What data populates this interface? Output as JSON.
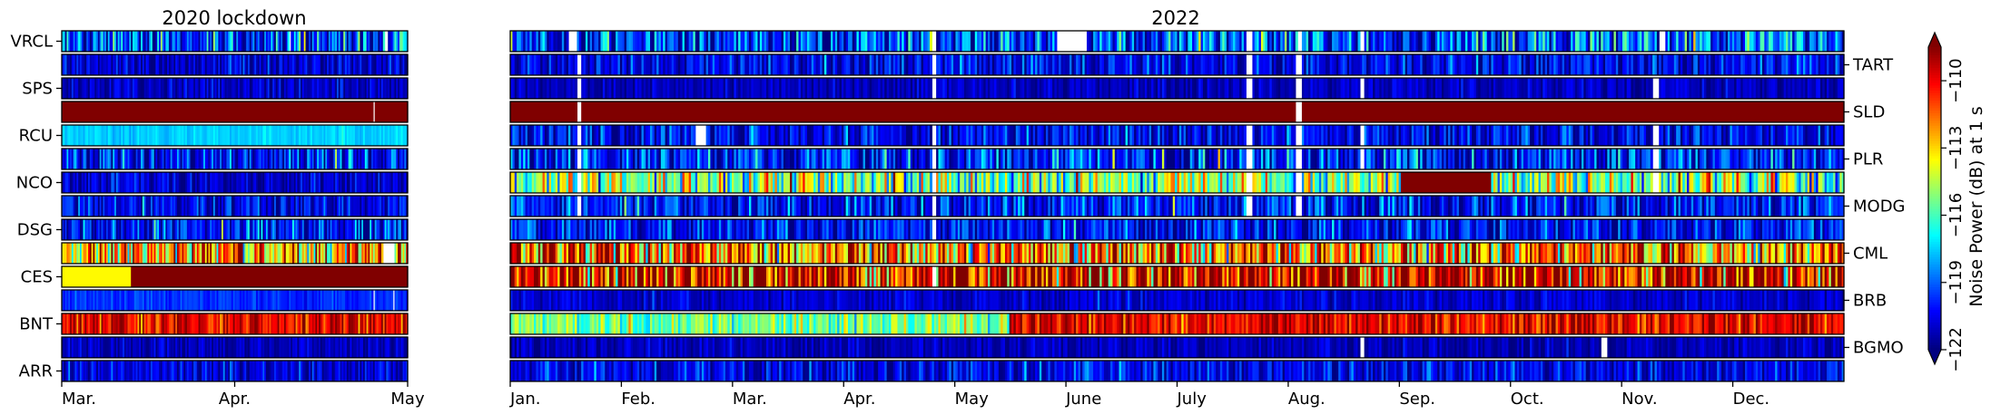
{
  "colorbar": {
    "label": "Noise Power (dB) at 1 s",
    "min": -122,
    "max": -108.5,
    "ticks": [
      -122,
      -119,
      -116,
      -113,
      -110
    ],
    "tick_labels": [
      "−122",
      "−119",
      "−116",
      "−113",
      "−110"
    ],
    "colormap": "jet",
    "extend": "both"
  },
  "chart_data": [
    {
      "type": "heatmap",
      "title": "2020 lockdown",
      "x_start": "2020-03-01",
      "x_end": "2020-05-01",
      "x_ticks": [
        "Mar.",
        "Apr.",
        "May"
      ],
      "y_labels_left": [
        "VRCL",
        "SPS",
        "RCU",
        "NCO",
        "DSG",
        "CES",
        "BNT",
        "ARR"
      ],
      "y_labels_right": [],
      "rows": [
        {
          "station": "VRCL",
          "median": -119.5,
          "variability": 3.0,
          "gaps": [
            [
              0.655,
              0.66
            ],
            [
              0.935,
              0.945
            ]
          ]
        },
        {
          "station": "TART",
          "median": -121.0,
          "variability": 1.4,
          "gaps": []
        },
        {
          "station": "SPS",
          "median": -121.2,
          "variability": 1.0,
          "gaps": []
        },
        {
          "station": "SLD",
          "median": -108.5,
          "variability": 0.0,
          "gaps": [
            [
              0.9,
              0.905
            ]
          ]
        },
        {
          "station": "RCU",
          "median": -117.6,
          "variability": 0.4,
          "gaps": []
        },
        {
          "station": "PLR",
          "median": -120.3,
          "variability": 2.2,
          "gaps": []
        },
        {
          "station": "NCO",
          "median": -121.0,
          "variability": 1.2,
          "gaps": []
        },
        {
          "station": "MODG",
          "median": -120.5,
          "variability": 1.6,
          "gaps": []
        },
        {
          "station": "DSG",
          "median": -120.2,
          "variability": 2.4,
          "gaps": []
        },
        {
          "station": "CML",
          "median": -112.5,
          "variability": 4.2,
          "gaps": [
            [
              0.93,
              0.96
            ]
          ]
        },
        {
          "station": "CES",
          "median": -108.5,
          "variability": 0.0,
          "lead_median": -113.5,
          "lead_fraction": 0.2,
          "gaps": []
        },
        {
          "station": "BRB",
          "median": -119.8,
          "variability": 0.6,
          "gaps": [
            [
              0.9,
              0.906
            ],
            [
              0.955,
              0.96
            ]
          ]
        },
        {
          "station": "BNT",
          "median": -110.0,
          "variability": 1.8,
          "gaps": []
        },
        {
          "station": "BGMO",
          "median": -121.3,
          "variability": 0.8,
          "gaps": []
        },
        {
          "station": "ARR",
          "median": -120.8,
          "variability": 1.2,
          "gaps": []
        }
      ]
    },
    {
      "type": "heatmap",
      "title": "2022",
      "x_start": "2022-01-01",
      "x_end": "2022-12-31",
      "x_ticks": [
        "Jan.",
        "Feb.",
        "Mar.",
        "Apr.",
        "May",
        "June",
        "July",
        "Aug.",
        "Sep.",
        "Oct.",
        "Nov.",
        "Dec."
      ],
      "y_labels_left": [],
      "y_labels_right": [
        "TART",
        "SLD",
        "PLR",
        "MODG",
        "CML",
        "BRB",
        "BGMO"
      ],
      "rows": [
        {
          "station": "VRCL",
          "median": -119.5,
          "variability": 3.0,
          "gaps": [
            [
              0.044,
              0.05
            ],
            [
              0.316,
              0.32
            ],
            [
              0.41,
              0.432
            ],
            [
              0.552,
              0.556
            ],
            [
              0.59,
              0.594
            ],
            [
              0.637,
              0.64
            ],
            [
              0.862,
              0.866
            ]
          ]
        },
        {
          "station": "TART",
          "median": -120.5,
          "variability": 1.6,
          "gaps": [
            [
              0.05,
              0.054
            ],
            [
              0.316,
              0.32
            ],
            [
              0.552,
              0.556
            ],
            [
              0.589,
              0.593
            ]
          ]
        },
        {
          "station": "SPS",
          "median": -121.2,
          "variability": 0.8,
          "gaps": [
            [
              0.05,
              0.054
            ],
            [
              0.316,
              0.32
            ],
            [
              0.552,
              0.556
            ],
            [
              0.589,
              0.593
            ],
            [
              0.637,
              0.64
            ],
            [
              0.857,
              0.861
            ]
          ]
        },
        {
          "station": "SLD",
          "median": -108.5,
          "variability": 0.0,
          "gaps": [
            [
              0.05,
              0.054
            ],
            [
              0.589,
              0.593
            ]
          ]
        },
        {
          "station": "RCU",
          "median": -120.6,
          "variability": 1.6,
          "gaps": [
            [
              0.05,
              0.054
            ],
            [
              0.138,
              0.146
            ],
            [
              0.316,
              0.32
            ],
            [
              0.552,
              0.556
            ],
            [
              0.589,
              0.593
            ],
            [
              0.637,
              0.64
            ],
            [
              0.857,
              0.861
            ]
          ]
        },
        {
          "station": "PLR",
          "median": -120.0,
          "variability": 2.4,
          "gaps": [
            [
              0.05,
              0.054
            ],
            [
              0.316,
              0.32
            ],
            [
              0.552,
              0.556
            ],
            [
              0.589,
              0.593
            ],
            [
              0.637,
              0.64
            ],
            [
              0.857,
              0.861
            ]
          ]
        },
        {
          "station": "NCO",
          "median": -115.5,
          "variability": 3.4,
          "block": [
            0.668,
            0.735
          ],
          "gaps": [
            [
              0.05,
              0.054
            ],
            [
              0.316,
              0.32
            ],
            [
              0.552,
              0.556
            ],
            [
              0.589,
              0.593
            ],
            [
              0.857,
              0.861
            ]
          ]
        },
        {
          "station": "MODG",
          "median": -120.2,
          "variability": 2.0,
          "gaps": [
            [
              0.05,
              0.054
            ],
            [
              0.316,
              0.32
            ],
            [
              0.552,
              0.556
            ],
            [
              0.589,
              0.593
            ]
          ]
        },
        {
          "station": "DSG",
          "median": -120.4,
          "variability": 1.8,
          "gaps": [
            [
              0.316,
              0.32
            ]
          ]
        },
        {
          "station": "CML",
          "median": -111.8,
          "variability": 4.2,
          "gaps": []
        },
        {
          "station": "CES",
          "median": -109.8,
          "variability": 4.2,
          "gaps": [
            [
              0.316,
              0.32
            ]
          ]
        },
        {
          "station": "BRB",
          "median": -121.0,
          "variability": 0.8,
          "gaps": []
        },
        {
          "station": "BNT",
          "median": -115.5,
          "variability": 1.8,
          "hot_from": 0.375,
          "hot_median": -110.0,
          "gaps": []
        },
        {
          "station": "BGMO",
          "median": -121.3,
          "variability": 0.8,
          "gaps": [
            [
              0.637,
              0.64
            ],
            [
              0.818,
              0.822
            ]
          ]
        },
        {
          "station": "ARR",
          "median": -120.6,
          "variability": 1.4,
          "gaps": []
        }
      ]
    }
  ]
}
